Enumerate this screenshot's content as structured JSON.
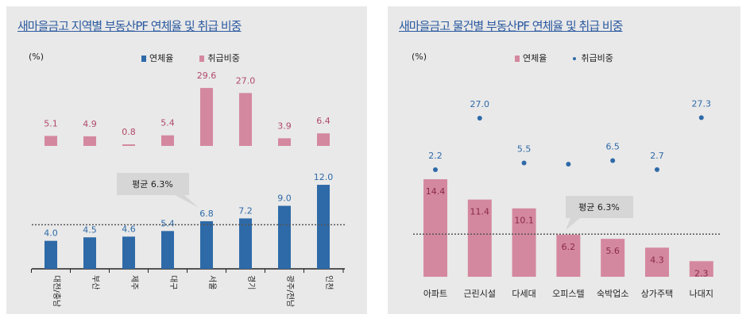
{
  "colors": {
    "blue": "#2e6aa8",
    "pink": "#d4889f",
    "pink_label": "#b04a6a",
    "blue_label": "#2e6aa8",
    "title": "#2c5aa0"
  },
  "chart_data": [
    {
      "type": "bar",
      "title": "새마을금고 지역별 부동산PF 연체율 및 취급 비중",
      "unit_label": "(%)",
      "categories": [
        "대전/충남",
        "부산",
        "제주",
        "대구",
        "서울",
        "경기",
        "광주/전남",
        "인천"
      ],
      "series": [
        {
          "name": "연체율",
          "values": [
            4.0,
            4.5,
            4.6,
            5.4,
            6.8,
            7.2,
            9.0,
            12.0
          ]
        },
        {
          "name": "취급비중",
          "values": [
            5.1,
            4.9,
            0.8,
            5.4,
            29.6,
            27.0,
            3.9,
            6.4
          ]
        }
      ],
      "average": {
        "value": 6.3,
        "label": "평균 6.3%"
      },
      "legend": "top"
    },
    {
      "type": "bar",
      "title": "새마을금고 물건별 부동산PF 연체율 및 취급 비중",
      "unit_label": "(%)",
      "categories": [
        "아파트",
        "근린시설",
        "다세대",
        "오피스텔",
        "숙박업소",
        "상가주택",
        "나대지"
      ],
      "series": [
        {
          "name": "연체율",
          "values": [
            14.4,
            11.4,
            10.1,
            6.2,
            5.6,
            4.3,
            2.3
          ]
        },
        {
          "name": "취급비중",
          "values": [
            2.2,
            27.0,
            5.5,
            null,
            6.5,
            2.7,
            27.3
          ]
        }
      ],
      "average": {
        "value": 6.3,
        "label": "평균 6.3%"
      },
      "legend": "top"
    }
  ]
}
